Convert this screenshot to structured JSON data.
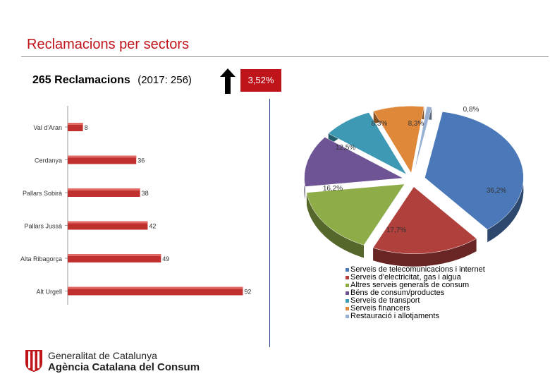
{
  "header": {
    "title": "Reclamacions per sectors",
    "total_label": "265 Reclamacions",
    "previous_label": "(2017: 256)",
    "change_label": "3,52%"
  },
  "chart_data": [
    {
      "type": "bar",
      "orientation": "horizontal",
      "categories": [
        "Val d'Aran",
        "Cerdanya",
        "Pallars Sobirà",
        "Pallars Jussà",
        "Alta Ribagorça",
        "Alt Urgell"
      ],
      "values": [
        8,
        36,
        38,
        42,
        49,
        92
      ],
      "value_labels": [
        "8",
        "36",
        "38",
        "42",
        "49",
        "92"
      ],
      "color": "#c0302e",
      "xlim": [
        0,
        100
      ]
    },
    {
      "type": "pie",
      "style": "3d-exploded",
      "labels": [
        "Serveis de telecomunicacions i internet",
        "Serveis d'electricitat, gas i aigua",
        "Altres serveis generals de consum",
        "Béns de consum/productes",
        "Serveis de transport",
        "Serveis financers",
        "Restauració i allotjaments"
      ],
      "values": [
        36.2,
        17.7,
        16.2,
        12.5,
        8.3,
        8.3,
        0.8
      ],
      "value_labels": [
        "36,2%",
        "17,7%",
        "16,2%",
        "12,5%",
        "8,3%",
        "8,3%",
        "0,8%"
      ],
      "colors": [
        "#4a78b8",
        "#b0403c",
        "#8eac48",
        "#6e5494",
        "#3e9ab4",
        "#e0883a",
        "#98b0d4"
      ],
      "legend_position": "bottom-right"
    }
  ],
  "footer": {
    "org_name": "Generalitat de Catalunya",
    "agency_name": "Agència Catalana del Consum"
  }
}
